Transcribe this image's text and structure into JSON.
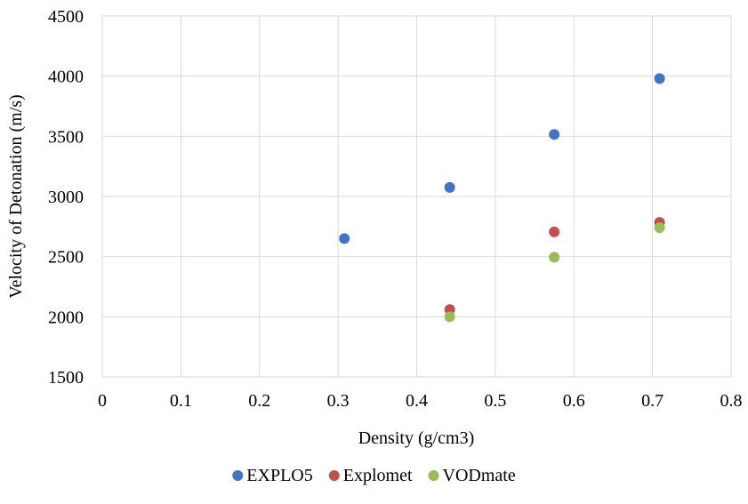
{
  "chart_data": {
    "type": "scatter",
    "title": "",
    "xlabel": "Density (g/cm3)",
    "ylabel": "Velocity of Detonation (m/s)",
    "xlim": [
      0,
      0.8
    ],
    "ylim": [
      1500,
      4500
    ],
    "x_ticks": [
      "0",
      "0.1",
      "0.2",
      "0.3",
      "0.4",
      "0.5",
      "0.6",
      "0.7",
      "0.8"
    ],
    "y_ticks": [
      "1500",
      "2000",
      "2500",
      "3000",
      "3500",
      "4000",
      "4500"
    ],
    "grid": true,
    "legend_position": "bottom",
    "series": [
      {
        "name": "EXPLO5",
        "color": "#4472c4",
        "points": [
          {
            "x": 0.308,
            "y": 2650
          },
          {
            "x": 0.442,
            "y": 3075
          },
          {
            "x": 0.575,
            "y": 3515
          },
          {
            "x": 0.709,
            "y": 3980
          }
        ]
      },
      {
        "name": "Explomet",
        "color": "#c0504d",
        "points": [
          {
            "x": 0.442,
            "y": 2060
          },
          {
            "x": 0.575,
            "y": 2705
          },
          {
            "x": 0.709,
            "y": 2785
          }
        ]
      },
      {
        "name": "VODmate",
        "color": "#9bbb59",
        "points": [
          {
            "x": 0.442,
            "y": 2000
          },
          {
            "x": 0.575,
            "y": 2495
          },
          {
            "x": 0.709,
            "y": 2740
          }
        ]
      }
    ]
  }
}
